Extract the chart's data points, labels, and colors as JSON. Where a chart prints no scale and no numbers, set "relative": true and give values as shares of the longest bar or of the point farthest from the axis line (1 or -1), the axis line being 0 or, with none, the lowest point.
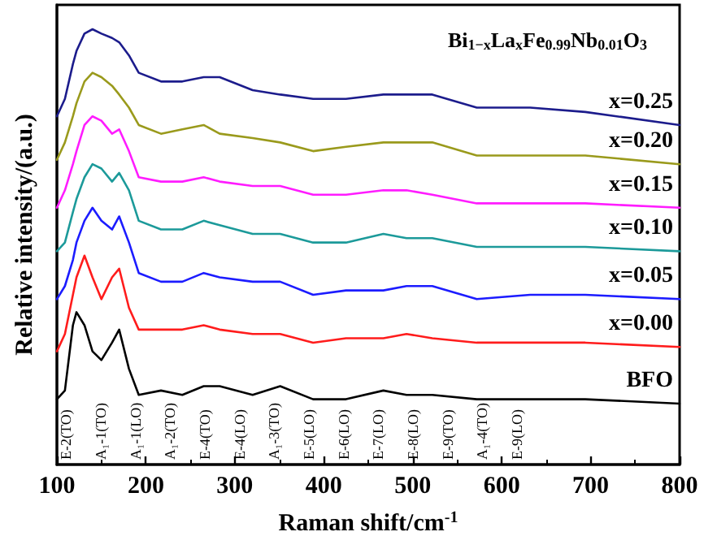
{
  "chart_data": {
    "type": "line",
    "relative": true,
    "title": "Bi$_{1−x}$La$_{x}$Fe$_{0.99}$Nb$_{0.01}$O$_{3}$",
    "xlabel": "Raman shift/cm$^{-1}$",
    "ylabel": "Relative intensity/(a.u.)",
    "x": [
      100,
      109,
      118,
      122,
      131,
      140,
      150,
      162,
      170,
      181,
      192,
      217,
      241,
      265,
      283,
      320,
      351,
      388,
      425,
      467,
      493,
      522,
      572,
      632,
      694,
      800
    ],
    "xlim": [
      100,
      800
    ],
    "xticks": [
      100,
      200,
      300,
      400,
      500,
      600,
      700,
      800
    ],
    "marker": "none",
    "line_style": "solid",
    "series": [
      {
        "name": "x=0.25",
        "color": "#1c1c8c",
        "values": [
          0.8,
          0.84,
          0.92,
          0.95,
          0.99,
          1,
          0.99,
          0.98,
          0.97,
          0.94,
          0.9,
          0.88,
          0.88,
          0.89,
          0.89,
          0.86,
          0.85,
          0.84,
          0.84,
          0.85,
          0.85,
          0.85,
          0.82,
          0.82,
          0.81,
          0.78
        ]
      },
      {
        "name": "x=0.20",
        "color": "#9a9a1c",
        "values": [
          0.7,
          0.74,
          0.8,
          0.83,
          0.88,
          0.9,
          0.89,
          0.87,
          0.85,
          0.82,
          0.78,
          0.76,
          0.77,
          0.78,
          0.76,
          0.75,
          0.74,
          0.72,
          0.73,
          0.74,
          0.74,
          0.74,
          0.71,
          0.71,
          0.71,
          0.69
        ]
      },
      {
        "name": "x=0.15",
        "color": "#ff1cff",
        "values": [
          0.59,
          0.63,
          0.69,
          0.72,
          0.78,
          0.8,
          0.79,
          0.76,
          0.77,
          0.72,
          0.66,
          0.65,
          0.65,
          0.66,
          0.65,
          0.64,
          0.64,
          0.62,
          0.62,
          0.63,
          0.63,
          0.62,
          0.6,
          0.6,
          0.6,
          0.59
        ]
      },
      {
        "name": "x=0.10",
        "color": "#1c9a9a",
        "values": [
          0.49,
          0.51,
          0.58,
          0.61,
          0.66,
          0.69,
          0.68,
          0.65,
          0.67,
          0.63,
          0.56,
          0.54,
          0.54,
          0.56,
          0.55,
          0.53,
          0.53,
          0.51,
          0.51,
          0.53,
          0.52,
          0.52,
          0.5,
          0.5,
          0.5,
          0.49
        ]
      },
      {
        "name": "x=0.05",
        "color": "#1c1cff",
        "values": [
          0.38,
          0.41,
          0.47,
          0.51,
          0.56,
          0.59,
          0.56,
          0.54,
          0.57,
          0.51,
          0.44,
          0.42,
          0.42,
          0.44,
          0.43,
          0.42,
          0.42,
          0.39,
          0.4,
          0.4,
          0.41,
          0.41,
          0.38,
          0.39,
          0.39,
          0.38
        ]
      },
      {
        "name": "x=0.00",
        "color": "#ff1c1c",
        "values": [
          0.26,
          0.3,
          0.39,
          0.43,
          0.48,
          0.43,
          0.38,
          0.43,
          0.45,
          0.36,
          0.31,
          0.31,
          0.31,
          0.32,
          0.31,
          0.3,
          0.3,
          0.28,
          0.29,
          0.29,
          0.3,
          0.29,
          0.28,
          0.28,
          0.28,
          0.27
        ]
      },
      {
        "name": "BFO",
        "color": "#000000",
        "values": [
          0.15,
          0.17,
          0.32,
          0.35,
          0.32,
          0.26,
          0.24,
          0.28,
          0.31,
          0.22,
          0.16,
          0.17,
          0.16,
          0.18,
          0.18,
          0.16,
          0.18,
          0.15,
          0.15,
          0.17,
          0.16,
          0.16,
          0.15,
          0.15,
          0.15,
          0.14
        ]
      }
    ],
    "annotations": [
      "E-2(TO)",
      "A₁-1(TO)",
      "A₁-1(LO)",
      "A₁-2(TO)",
      "E-4(TO)",
      "E-4(LO)",
      "A₁-3(TO)",
      "E-5(LO)",
      "E-6(LO)",
      "E-7(LO)",
      "E-8(LO)",
      "E-9(TO)",
      "A₁-4(TO)",
      "E-9(LO)"
    ]
  }
}
